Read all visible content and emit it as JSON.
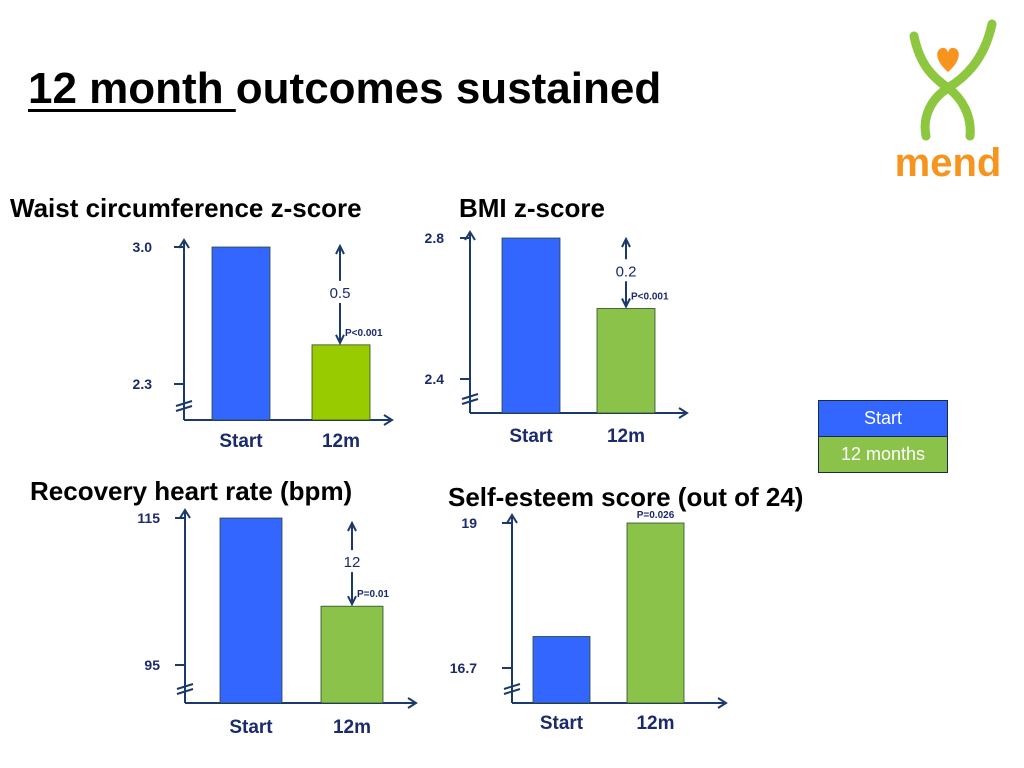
{
  "slide": {
    "title_underlined": "12 month ",
    "title_rest": "outcomes sustained",
    "logo_text": "mend"
  },
  "colors": {
    "start": "#3366ff",
    "twelve_months_bright": "#99cc00",
    "twelve_months": "#8bc34a",
    "axis": "#1b3a6b",
    "label": "#1b2a6b",
    "logo_green": "#8dc63f",
    "logo_orange": "#f7941d"
  },
  "legend": {
    "items": [
      {
        "label": "Start",
        "color": "#3366ff"
      },
      {
        "label": "12 months",
        "color": "#8bc34a"
      }
    ]
  },
  "chart_data": [
    {
      "type": "bar",
      "title": "Waist circumference z-score",
      "categories": [
        "Start",
        "12m"
      ],
      "values": [
        3.0,
        2.5
      ],
      "y_ticks": [
        "3.0",
        "2.3"
      ],
      "ylim": [
        2.3,
        3.0
      ],
      "axis_break": true,
      "annotations": {
        "difference": "0.5",
        "p_value": "P<0.001"
      }
    },
    {
      "type": "bar",
      "title": "BMI z-score",
      "categories": [
        "Start",
        "12m"
      ],
      "values": [
        2.8,
        2.6
      ],
      "y_ticks": [
        "2.8",
        "2.4"
      ],
      "ylim": [
        2.4,
        2.8
      ],
      "axis_break": true,
      "annotations": {
        "difference": "0.2",
        "p_value": "P<0.001"
      }
    },
    {
      "type": "bar",
      "title": "Recovery heart rate (bpm)",
      "categories": [
        "Start",
        "12m"
      ],
      "values": [
        115,
        103
      ],
      "y_ticks": [
        "115",
        "95"
      ],
      "ylim": [
        95,
        115
      ],
      "axis_break": true,
      "annotations": {
        "difference": "12",
        "p_value": "P=0.01"
      }
    },
    {
      "type": "bar",
      "title": "Self-esteem score (out of 24)",
      "categories": [
        "Start",
        "12m"
      ],
      "values": [
        17.2,
        19.0
      ],
      "y_ticks": [
        "19",
        "16.7"
      ],
      "ylim": [
        16.7,
        19.0
      ],
      "axis_break": true,
      "annotations": {
        "difference": "",
        "p_value": "P=0.026"
      }
    }
  ]
}
